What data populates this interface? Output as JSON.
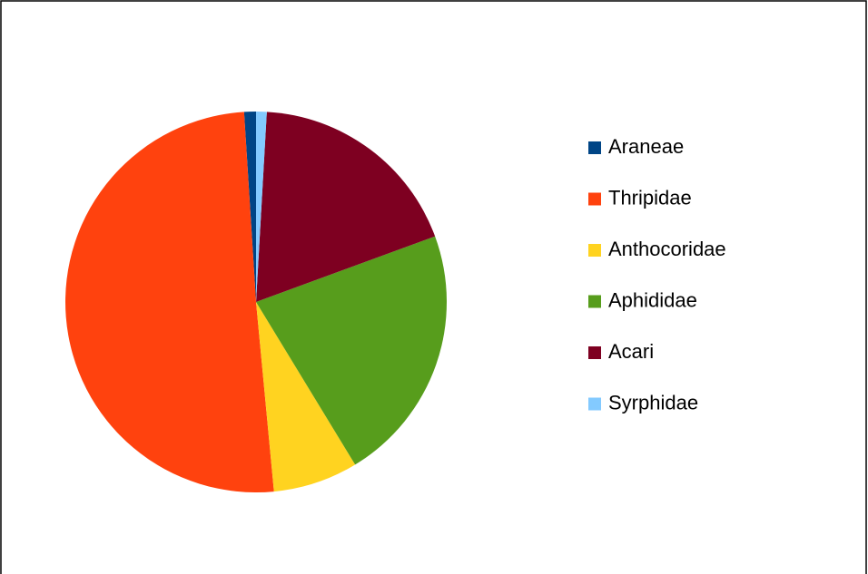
{
  "chart_data": {
    "type": "pie",
    "categories": [
      "Araneae",
      "Thripidae",
      "Anthocoridae",
      "Aphididae",
      "Acari",
      "Syrphidae"
    ],
    "values": [
      1,
      50.5,
      7.2,
      21.9,
      18.5,
      0.9
    ],
    "colors": [
      "#004586",
      "#ff420e",
      "#ffd320",
      "#579d1c",
      "#7e0021",
      "#83caff"
    ],
    "legend": "right"
  }
}
